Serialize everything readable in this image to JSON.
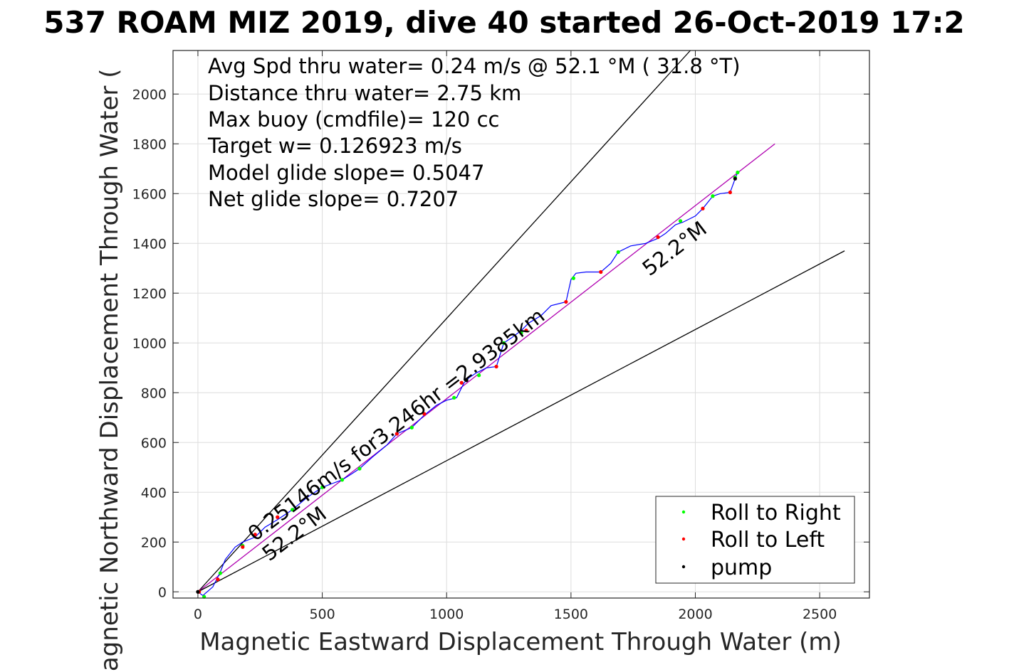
{
  "chart_data": {
    "type": "line",
    "title": "537 ROAM MIZ 2019, dive 40 started 26-Oct-2019 17:2",
    "xlabel": "Magnetic Eastward Displacement Through Water (m)",
    "ylabel": "Magnetic Northward Displacement Through Water (",
    "xlim": [
      -100,
      2700
    ],
    "ylim": [
      -25,
      2175
    ],
    "xticks": [
      0,
      500,
      1000,
      1500,
      2000,
      2500
    ],
    "yticks": [
      0,
      200,
      400,
      600,
      800,
      1000,
      1200,
      1400,
      1600,
      1800,
      2000
    ],
    "grid": true,
    "stats_text": [
      "Avg Spd thru water=  0.24 m/s @  52.1 °M ( 31.8 °T)",
      "Distance thru water=  2.75 km",
      "Max buoy (cmdfile)= 120 cc",
      "Target w= 0.126923 m/s",
      "Model glide slope= 0.5047",
      "Net glide slope= 0.7207"
    ],
    "annotations": {
      "speed_text": "0.25146m/s for3.246hr =2.9385km",
      "heading_upper": "52.2°M",
      "heading_lower": "52.2°M"
    },
    "reference_lines": [
      {
        "name": "upper-bound",
        "x": [
          0,
          1980
        ],
        "y": [
          0,
          2175
        ]
      },
      {
        "name": "heading-line",
        "x": [
          0,
          2320
        ],
        "y": [
          0,
          1800
        ]
      },
      {
        "name": "lower-bound",
        "x": [
          0,
          2600
        ],
        "y": [
          0,
          1370
        ]
      }
    ],
    "track": {
      "x": [
        0,
        20,
        60,
        90,
        110,
        150,
        180,
        230,
        270,
        320,
        380,
        440,
        500,
        540,
        580,
        620,
        650,
        700,
        760,
        800,
        860,
        910,
        960,
        1000,
        1040,
        1070,
        1090,
        1120,
        1160,
        1200,
        1230,
        1260,
        1300,
        1330,
        1380,
        1420,
        1480,
        1500,
        1520,
        1560,
        1620,
        1660,
        1690,
        1740,
        1800,
        1850,
        1880,
        1920,
        1950,
        2000,
        2030,
        2070,
        2100,
        2140,
        2160,
        2170
      ],
      "y": [
        0,
        -15,
        20,
        80,
        130,
        180,
        200,
        220,
        260,
        290,
        330,
        380,
        420,
        435,
        450,
        475,
        495,
        540,
        590,
        635,
        660,
        710,
        750,
        770,
        780,
        840,
        860,
        880,
        900,
        905,
        1000,
        1020,
        1050,
        1080,
        1110,
        1150,
        1165,
        1255,
        1280,
        1285,
        1285,
        1320,
        1365,
        1390,
        1400,
        1420,
        1440,
        1475,
        1485,
        1510,
        1540,
        1590,
        1600,
        1605,
        1660,
        1685
      ]
    },
    "series": [
      {
        "name": "Roll to Right",
        "color": "#00ff00",
        "x": [
          25,
          90,
          180,
          380,
          500,
          580,
          650,
          860,
          1030,
          1130,
          1230,
          1300,
          1510,
          1690,
          1940,
          2070,
          2160,
          2170
        ],
        "y": [
          -20,
          75,
          185,
          330,
          420,
          450,
          495,
          660,
          780,
          870,
          1000,
          1040,
          1260,
          1365,
          1490,
          1590,
          1665,
          1685
        ]
      },
      {
        "name": "Roll to Left",
        "color": "#ff0000",
        "x": [
          5,
          80,
          180,
          230,
          320,
          800,
          910,
          1060,
          1200,
          1320,
          1480,
          1620,
          1850,
          2030,
          2140
        ],
        "y": [
          0,
          50,
          180,
          230,
          300,
          635,
          715,
          840,
          905,
          1050,
          1165,
          1285,
          1425,
          1540,
          1605
        ]
      },
      {
        "name": "pump",
        "color": "#000000",
        "x": [
          0,
          1080,
          2160
        ],
        "y": [
          0,
          850,
          1660
        ]
      }
    ],
    "colors": {
      "track": "#0000ff",
      "fit_line": "#b000b0",
      "grid": "#dddddd",
      "frame": "#262626"
    }
  }
}
